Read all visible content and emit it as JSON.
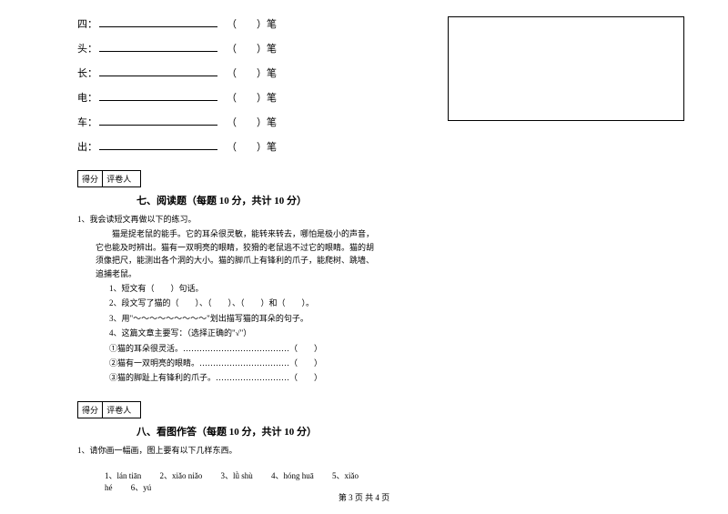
{
  "strokes": {
    "rows": [
      {
        "char": "四：",
        "suffix": "（　　）笔"
      },
      {
        "char": "头：",
        "suffix": "（　　）笔"
      },
      {
        "char": "长：",
        "suffix": "（　　）笔"
      },
      {
        "char": "电：",
        "suffix": "（　　）笔"
      },
      {
        "char": "车：",
        "suffix": "（　　）笔"
      },
      {
        "char": "出：",
        "suffix": "（　　）笔"
      }
    ]
  },
  "scoreBox": {
    "label1": "得分",
    "label2": "评卷人"
  },
  "section7": {
    "heading": "七、阅读题（每题 10 分，共计 10 分）",
    "q1": "1、我会读短文再做以下的练习。",
    "para1": "　　猫是捉老鼠的能手。它的耳朵很灵敏，能转来转去，哪怕是极小的声音，它也能及时辨出。猫有一双明亮的眼睛，狡猾的老鼠逃不过它的眼睛。猫的胡须像把尺，能测出各个洞的大小。猫的脚爪上有锋利的爪子，能爬树、跳墙、追捕老鼠。",
    "sub1": "1、短文有（　　）句话。",
    "sub2": "2、段文写了猫的（　　）、（　　）、（　　）和（　　）。",
    "sub3": "3、用\"～～～～～～～～～\"划出描写猫的耳朵的句子。",
    "sub4": "4、这篇文章主要写：（选择正确的\"√\"）",
    "opt1": "①猫的耳朵很灵活。…………………………………（　　）",
    "opt2": "②猫有一双明亮的眼睛。……………………………（　　）",
    "opt3": "③猫的脚趾上有锋利的爪子。………………………（　　）"
  },
  "section8": {
    "heading": "八、看图作答（每题 10 分，共计 10 分）",
    "q1": "1、请你画一幅画，图上要有以下几样东西。",
    "pinyin": {
      "p1": "1、lán tiān",
      "p2": "2、xiǎo niǎo",
      "p3": "3、lǜ shù",
      "p4": "4、hóng huā",
      "p5": "5、xiǎo hé",
      "p6": "6、yú"
    }
  },
  "footer": "第 3 页 共 4 页"
}
